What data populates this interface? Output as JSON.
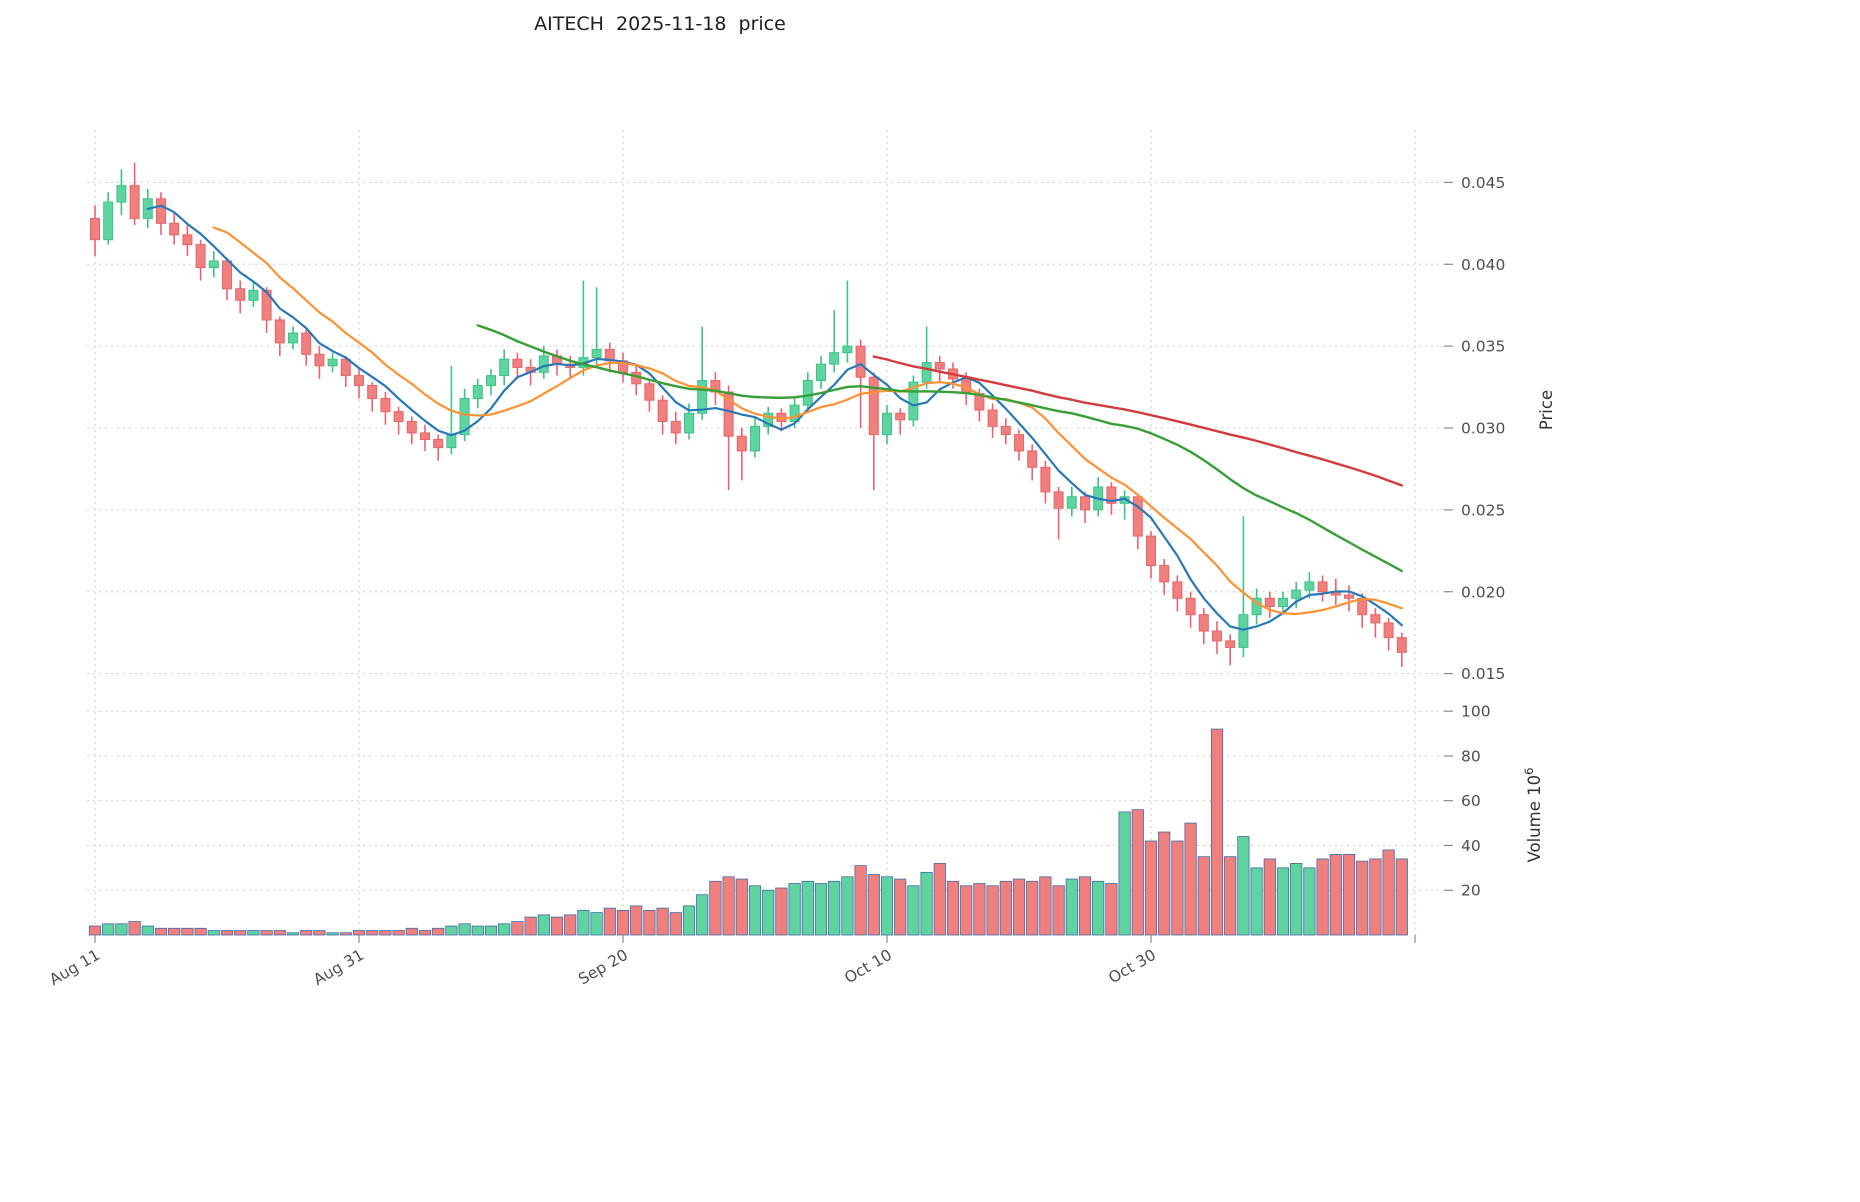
{
  "title": "AITECH  2025-11-18  price",
  "axes": {
    "price_axis_label": "Price",
    "volume_axis_label_base": "Volume  10",
    "volume_axis_label_exponent": "6",
    "price_ticks": [
      0.045,
      0.04,
      0.035,
      0.03,
      0.025,
      0.02,
      0.015
    ],
    "volume_ticks": [
      100,
      80,
      60,
      40,
      20
    ],
    "x_ticks": [
      {
        "index": 0,
        "label": "Aug 11"
      },
      {
        "index": 20,
        "label": "Aug 31"
      },
      {
        "index": 40,
        "label": "Sep 20"
      },
      {
        "index": 60,
        "label": "Oct 10"
      },
      {
        "index": 80,
        "label": "Oct 30"
      },
      {
        "index": 100,
        "label": ""
      }
    ]
  },
  "colors": {
    "up": "#5fd3a0",
    "up_edge": "#3cc287",
    "down": "#f0807e",
    "down_edge": "#e9636b",
    "volume_edge": "#4169a8",
    "grid": "#cccccc",
    "tick_text": "#4f4f4f",
    "axis_label_text": "#333333",
    "title_text": "#1f1f1f"
  },
  "chart_data": {
    "type": "candlestick",
    "symbol": "AITECH",
    "as_of_date": "2025-11-18",
    "title": "AITECH  2025-11-18  price",
    "ylabel": "Price",
    "ylabel2": "Volume 10^6",
    "price_ylim": [
      0.014,
      0.0482
    ],
    "volume_ylim": [
      0,
      105
    ],
    "volume_unit": "millions",
    "grid": true,
    "columns": [
      "date",
      "open",
      "high",
      "low",
      "close",
      "volume_millions"
    ],
    "candles": [
      [
        "2025-08-11",
        0.0428,
        0.0436,
        0.0405,
        0.0415,
        4
      ],
      [
        "2025-08-12",
        0.0415,
        0.0444,
        0.0412,
        0.0438,
        5
      ],
      [
        "2025-08-13",
        0.0438,
        0.0458,
        0.043,
        0.0448,
        5
      ],
      [
        "2025-08-14",
        0.0448,
        0.0462,
        0.0424,
        0.0428,
        6
      ],
      [
        "2025-08-15",
        0.0428,
        0.0446,
        0.0422,
        0.044,
        4
      ],
      [
        "2025-08-16",
        0.044,
        0.0444,
        0.0418,
        0.0425,
        3
      ],
      [
        "2025-08-17",
        0.0425,
        0.0432,
        0.0412,
        0.0418,
        3
      ],
      [
        "2025-08-18",
        0.0418,
        0.0424,
        0.0405,
        0.0412,
        3
      ],
      [
        "2025-08-19",
        0.0412,
        0.0415,
        0.039,
        0.0398,
        3
      ],
      [
        "2025-08-20",
        0.0398,
        0.0408,
        0.0392,
        0.0402,
        2
      ],
      [
        "2025-08-21",
        0.0402,
        0.0404,
        0.0378,
        0.0385,
        2
      ],
      [
        "2025-08-22",
        0.0385,
        0.039,
        0.037,
        0.0378,
        2
      ],
      [
        "2025-08-23",
        0.0378,
        0.039,
        0.0374,
        0.0384,
        2
      ],
      [
        "2025-08-24",
        0.0384,
        0.0386,
        0.0358,
        0.0366,
        2
      ],
      [
        "2025-08-25",
        0.0366,
        0.0368,
        0.0344,
        0.0352,
        2
      ],
      [
        "2025-08-26",
        0.0352,
        0.0362,
        0.0348,
        0.0358,
        1
      ],
      [
        "2025-08-27",
        0.0358,
        0.036,
        0.0338,
        0.0345,
        2
      ],
      [
        "2025-08-28",
        0.0345,
        0.035,
        0.033,
        0.0338,
        2
      ],
      [
        "2025-08-29",
        0.0338,
        0.0346,
        0.0334,
        0.0342,
        1
      ],
      [
        "2025-08-30",
        0.0342,
        0.0344,
        0.0325,
        0.0332,
        1
      ],
      [
        "2025-08-31",
        0.0332,
        0.0336,
        0.0318,
        0.0326,
        2
      ],
      [
        "2025-09-01",
        0.0326,
        0.0328,
        0.031,
        0.0318,
        2
      ],
      [
        "2025-09-02",
        0.0318,
        0.0322,
        0.0302,
        0.031,
        2
      ],
      [
        "2025-09-03",
        0.031,
        0.0313,
        0.0296,
        0.0304,
        2
      ],
      [
        "2025-09-04",
        0.0304,
        0.0307,
        0.029,
        0.0297,
        3
      ],
      [
        "2025-09-05",
        0.0297,
        0.0302,
        0.0286,
        0.0293,
        2
      ],
      [
        "2025-09-06",
        0.0293,
        0.0296,
        0.028,
        0.0288,
        3
      ],
      [
        "2025-09-07",
        0.0288,
        0.0338,
        0.0284,
        0.0296,
        4
      ],
      [
        "2025-09-08",
        0.0296,
        0.0324,
        0.0292,
        0.0318,
        5
      ],
      [
        "2025-09-09",
        0.0318,
        0.033,
        0.0312,
        0.0326,
        4
      ],
      [
        "2025-09-10",
        0.0326,
        0.0336,
        0.032,
        0.0332,
        4
      ],
      [
        "2025-09-11",
        0.0332,
        0.0348,
        0.0326,
        0.0342,
        5
      ],
      [
        "2025-09-12",
        0.0342,
        0.0346,
        0.033,
        0.0337,
        6
      ],
      [
        "2025-09-13",
        0.0337,
        0.0342,
        0.0326,
        0.0334,
        8
      ],
      [
        "2025-09-14",
        0.0334,
        0.035,
        0.033,
        0.0344,
        9
      ],
      [
        "2025-09-15",
        0.0344,
        0.0348,
        0.0332,
        0.0339,
        8
      ],
      [
        "2025-09-16",
        0.0339,
        0.0344,
        0.033,
        0.0337,
        9
      ],
      [
        "2025-09-17",
        0.0337,
        0.039,
        0.0332,
        0.0343,
        11
      ],
      [
        "2025-09-18",
        0.0343,
        0.0386,
        0.0338,
        0.0348,
        10
      ],
      [
        "2025-09-19",
        0.0348,
        0.0352,
        0.0334,
        0.0341,
        12
      ],
      [
        "2025-09-20",
        0.0341,
        0.0346,
        0.0328,
        0.0334,
        11
      ],
      [
        "2025-09-21",
        0.0334,
        0.0338,
        0.032,
        0.0327,
        13
      ],
      [
        "2025-09-22",
        0.0327,
        0.033,
        0.031,
        0.0317,
        11
      ],
      [
        "2025-09-23",
        0.0317,
        0.032,
        0.0296,
        0.0304,
        12
      ],
      [
        "2025-09-24",
        0.0304,
        0.031,
        0.029,
        0.0297,
        10
      ],
      [
        "2025-09-25",
        0.0297,
        0.0315,
        0.0293,
        0.0309,
        13
      ],
      [
        "2025-09-26",
        0.0309,
        0.0362,
        0.0305,
        0.0329,
        18
      ],
      [
        "2025-09-27",
        0.0329,
        0.0334,
        0.0314,
        0.0322,
        24
      ],
      [
        "2025-09-28",
        0.0322,
        0.0326,
        0.0262,
        0.0295,
        26
      ],
      [
        "2025-09-29",
        0.0295,
        0.03,
        0.0268,
        0.0286,
        25
      ],
      [
        "2025-09-30",
        0.0286,
        0.0306,
        0.0282,
        0.0301,
        22
      ],
      [
        "2025-10-01",
        0.0301,
        0.0313,
        0.0296,
        0.0309,
        20
      ],
      [
        "2025-10-02",
        0.0309,
        0.0312,
        0.0298,
        0.0304,
        21
      ],
      [
        "2025-10-03",
        0.0304,
        0.0318,
        0.03,
        0.0314,
        23
      ],
      [
        "2025-10-04",
        0.0314,
        0.0334,
        0.031,
        0.0329,
        24
      ],
      [
        "2025-10-05",
        0.0329,
        0.0344,
        0.0324,
        0.0339,
        23
      ],
      [
        "2025-10-06",
        0.0339,
        0.0372,
        0.0334,
        0.0346,
        24
      ],
      [
        "2025-10-07",
        0.0346,
        0.039,
        0.034,
        0.035,
        26
      ],
      [
        "2025-10-08",
        0.035,
        0.0354,
        0.03,
        0.0331,
        31
      ],
      [
        "2025-10-09",
        0.0331,
        0.0334,
        0.0262,
        0.0296,
        27
      ],
      [
        "2025-10-10",
        0.0296,
        0.0314,
        0.029,
        0.0309,
        26
      ],
      [
        "2025-10-11",
        0.0309,
        0.0312,
        0.0296,
        0.0305,
        25
      ],
      [
        "2025-10-12",
        0.0305,
        0.0332,
        0.0301,
        0.0328,
        22
      ],
      [
        "2025-10-13",
        0.0328,
        0.0362,
        0.0324,
        0.034,
        28
      ],
      [
        "2025-10-14",
        0.034,
        0.0344,
        0.0328,
        0.0336,
        32
      ],
      [
        "2025-10-15",
        0.0336,
        0.034,
        0.0324,
        0.033,
        24
      ],
      [
        "2025-10-16",
        0.033,
        0.0334,
        0.0314,
        0.0321,
        22
      ],
      [
        "2025-10-17",
        0.0321,
        0.0324,
        0.0304,
        0.0311,
        23
      ],
      [
        "2025-10-18",
        0.0311,
        0.0315,
        0.0294,
        0.0301,
        22
      ],
      [
        "2025-10-19",
        0.0301,
        0.0306,
        0.029,
        0.0296,
        24
      ],
      [
        "2025-10-20",
        0.0296,
        0.0299,
        0.028,
        0.0286,
        25
      ],
      [
        "2025-10-21",
        0.0286,
        0.029,
        0.0268,
        0.0276,
        24
      ],
      [
        "2025-10-22",
        0.0276,
        0.028,
        0.0254,
        0.0261,
        26
      ],
      [
        "2025-10-23",
        0.0261,
        0.0264,
        0.0232,
        0.0251,
        22
      ],
      [
        "2025-10-24",
        0.0251,
        0.0264,
        0.0246,
        0.0258,
        25
      ],
      [
        "2025-10-25",
        0.0258,
        0.0261,
        0.0242,
        0.025,
        26
      ],
      [
        "2025-10-26",
        0.025,
        0.027,
        0.0246,
        0.0264,
        24
      ],
      [
        "2025-10-27",
        0.0264,
        0.0267,
        0.0247,
        0.0254,
        23
      ],
      [
        "2025-10-28",
        0.0254,
        0.0262,
        0.0244,
        0.0258,
        55
      ],
      [
        "2025-10-29",
        0.0258,
        0.026,
        0.0226,
        0.0234,
        56
      ],
      [
        "2025-10-30",
        0.0234,
        0.0237,
        0.0208,
        0.0216,
        42
      ],
      [
        "2025-10-31",
        0.0216,
        0.022,
        0.0198,
        0.0206,
        46
      ],
      [
        "2025-11-01",
        0.0206,
        0.021,
        0.0188,
        0.0196,
        42
      ],
      [
        "2025-11-02",
        0.0196,
        0.02,
        0.0178,
        0.0186,
        50
      ],
      [
        "2025-11-03",
        0.0186,
        0.019,
        0.0168,
        0.0176,
        35
      ],
      [
        "2025-11-04",
        0.0176,
        0.0182,
        0.0162,
        0.017,
        92
      ],
      [
        "2025-11-05",
        0.017,
        0.0174,
        0.0155,
        0.0166,
        35
      ],
      [
        "2025-11-06",
        0.0166,
        0.0246,
        0.016,
        0.0186,
        44
      ],
      [
        "2025-11-07",
        0.0186,
        0.0202,
        0.018,
        0.0196,
        30
      ],
      [
        "2025-11-08",
        0.0196,
        0.02,
        0.0184,
        0.0191,
        34
      ],
      [
        "2025-11-09",
        0.0191,
        0.02,
        0.0186,
        0.0196,
        30
      ],
      [
        "2025-11-10",
        0.0196,
        0.0206,
        0.019,
        0.0201,
        32
      ],
      [
        "2025-11-11",
        0.0201,
        0.0212,
        0.0196,
        0.0206,
        30
      ],
      [
        "2025-11-12",
        0.0206,
        0.021,
        0.0194,
        0.02,
        34
      ],
      [
        "2025-11-13",
        0.02,
        0.0208,
        0.0192,
        0.0198,
        36
      ],
      [
        "2025-11-14",
        0.0198,
        0.0204,
        0.0188,
        0.0196,
        36
      ],
      [
        "2025-11-15",
        0.0196,
        0.0199,
        0.0178,
        0.0186,
        33
      ],
      [
        "2025-11-16",
        0.0186,
        0.019,
        0.0172,
        0.0181,
        34
      ],
      [
        "2025-11-17",
        0.0181,
        0.0184,
        0.0164,
        0.0172,
        38
      ],
      [
        "2025-11-18",
        0.0172,
        0.0175,
        0.0154,
        0.0163,
        34
      ]
    ],
    "moving_averages": [
      {
        "name": "SMA5",
        "window": 5,
        "color": "#2878b8",
        "width": 2.2
      },
      {
        "name": "SMA10",
        "window": 10,
        "color": "#fe9133",
        "width": 2.2
      },
      {
        "name": "SMA30",
        "window": 30,
        "color": "#379f36",
        "width": 2.4
      },
      {
        "name": "SMA60",
        "window": 60,
        "color": "#d23c3c",
        "width": 2.4
      }
    ]
  }
}
